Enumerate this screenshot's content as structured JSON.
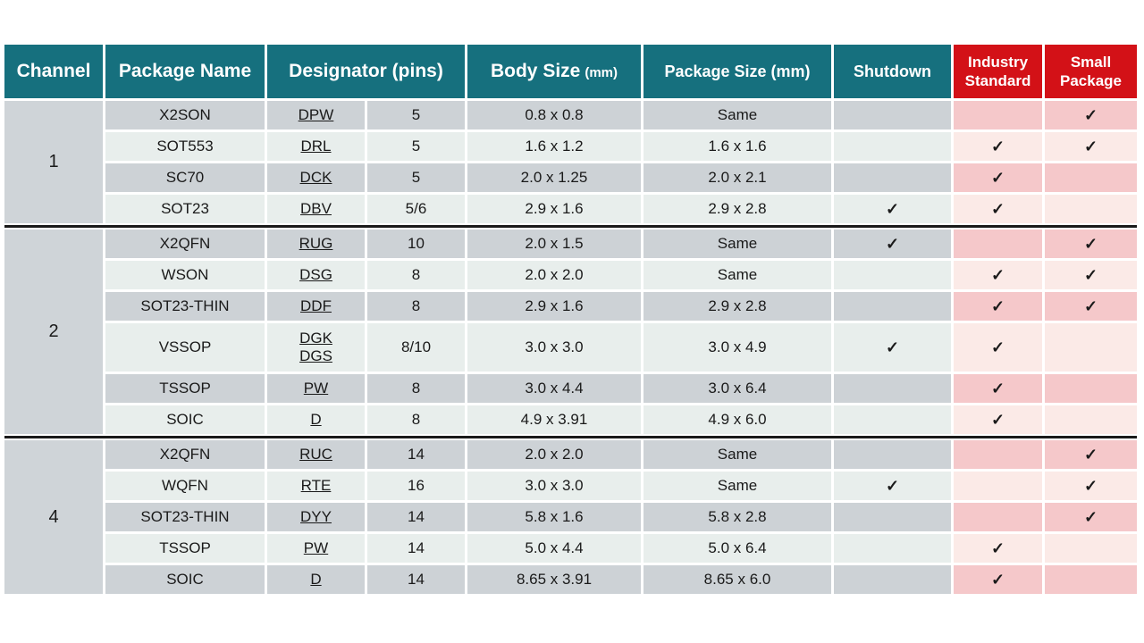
{
  "colors": {
    "header_teal": "#16707E",
    "header_red": "#D31117",
    "row_dark": "#CDD2D6",
    "row_light": "#E8EEEC",
    "pink_dark": "#F5C8CA",
    "pink_light": "#FBEAE7",
    "channel_column_bg": "#CFD4D8",
    "group_divider": "#1A1A1A"
  },
  "icons": {
    "check_icon": "✓"
  },
  "table": {
    "headers": {
      "channel": "Channel",
      "package_name": "Package Name",
      "designator": "Designator (pins)",
      "body_size": "Body Size",
      "body_size_unit": "(mm)",
      "package_size": "Package Size (mm)",
      "shutdown": "Shutdown",
      "industry_standard": "Industry Standard",
      "small_package": "Small Package"
    },
    "groups": [
      {
        "channel": "1",
        "rows": [
          {
            "package": "X2SON",
            "designator": "DPW",
            "pins": "5",
            "body_size": "0.8 x 0.8",
            "package_size": "Same",
            "shutdown": "",
            "industry_standard": "",
            "small_package": "✓"
          },
          {
            "package": "SOT553",
            "designator": "DRL",
            "pins": "5",
            "body_size": "1.6 x 1.2",
            "package_size": "1.6 x 1.6",
            "shutdown": "",
            "industry_standard": "✓",
            "small_package": "✓"
          },
          {
            "package": "SC70",
            "designator": "DCK",
            "pins": "5",
            "body_size": "2.0 x 1.25",
            "package_size": "2.0 x 2.1",
            "shutdown": "",
            "industry_standard": "✓",
            "small_package": ""
          },
          {
            "package": "SOT23",
            "designator": "DBV",
            "pins": "5/6",
            "body_size": "2.9 x 1.6",
            "package_size": "2.9 x 2.8",
            "shutdown": "✓",
            "industry_standard": "✓",
            "small_package": ""
          }
        ]
      },
      {
        "channel": "2",
        "rows": [
          {
            "package": "X2QFN",
            "designator": "RUG",
            "pins": "10",
            "body_size": "2.0 x 1.5",
            "package_size": "Same",
            "shutdown": "✓",
            "industry_standard": "",
            "small_package": "✓"
          },
          {
            "package": "WSON",
            "designator": "DSG",
            "pins": "8",
            "body_size": "2.0 x 2.0",
            "package_size": "Same",
            "shutdown": "",
            "industry_standard": "✓",
            "small_package": "✓"
          },
          {
            "package": "SOT23-THIN",
            "designator": "DDF",
            "pins": "8",
            "body_size": "2.9 x 1.6",
            "package_size": "2.9 x 2.8",
            "shutdown": "",
            "industry_standard": "✓",
            "small_package": "✓"
          },
          {
            "package": "VSSOP",
            "designator": "DGK",
            "designator2": "DGS",
            "pins": "8/10",
            "body_size": "3.0 x 3.0",
            "package_size": "3.0 x 4.9",
            "shutdown": "✓",
            "industry_standard": "✓",
            "small_package": ""
          },
          {
            "package": "TSSOP",
            "designator": "PW",
            "pins": "8",
            "body_size": "3.0 x 4.4",
            "package_size": "3.0 x 6.4",
            "shutdown": "",
            "industry_standard": "✓",
            "small_package": ""
          },
          {
            "package": "SOIC",
            "designator": "D",
            "pins": "8",
            "body_size": "4.9 x 3.91",
            "package_size": "4.9 x 6.0",
            "shutdown": "",
            "industry_standard": "✓",
            "small_package": ""
          }
        ]
      },
      {
        "channel": "4",
        "rows": [
          {
            "package": "X2QFN",
            "designator": "RUC",
            "pins": "14",
            "body_size": "2.0 x 2.0",
            "package_size": "Same",
            "shutdown": "",
            "industry_standard": "",
            "small_package": "✓"
          },
          {
            "package": "WQFN",
            "designator": "RTE",
            "pins": "16",
            "body_size": "3.0 x 3.0",
            "package_size": "Same",
            "shutdown": "✓",
            "industry_standard": "",
            "small_package": "✓"
          },
          {
            "package": "SOT23-THIN",
            "designator": "DYY",
            "pins": "14",
            "body_size": "5.8 x 1.6",
            "package_size": "5.8 x 2.8",
            "shutdown": "",
            "industry_standard": "",
            "small_package": "✓"
          },
          {
            "package": "TSSOP",
            "designator": "PW",
            "pins": "14",
            "body_size": "5.0 x 4.4",
            "package_size": "5.0 x 6.4",
            "shutdown": "",
            "industry_standard": "✓",
            "small_package": ""
          },
          {
            "package": "SOIC",
            "designator": "D",
            "pins": "14",
            "body_size": "8.65 x 3.91",
            "package_size": "8.65 x 6.0",
            "shutdown": "",
            "industry_standard": "✓",
            "small_package": ""
          }
        ]
      }
    ]
  }
}
